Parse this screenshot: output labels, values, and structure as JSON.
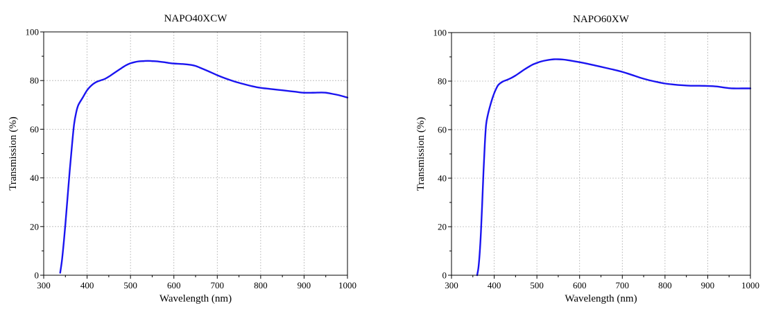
{
  "chart_data": [
    {
      "type": "line",
      "title": "NAPO40XCW",
      "xlabel": "Wavelength (nm)",
      "ylabel": "Transmission (%)",
      "xlim": [
        300,
        1000
      ],
      "ylim": [
        0,
        100
      ],
      "xticks": [
        300,
        400,
        500,
        600,
        700,
        800,
        900,
        1000
      ],
      "yticks": [
        0,
        20,
        40,
        60,
        80,
        100
      ],
      "grid": true,
      "line_color": "#1a14f0",
      "series": [
        {
          "name": "NAPO40XCW",
          "x": [
            338,
            342,
            346,
            350,
            355,
            360,
            365,
            370,
            375,
            380,
            390,
            400,
            410,
            420,
            430,
            440,
            450,
            460,
            470,
            480,
            490,
            500,
            510,
            520,
            530,
            540,
            550,
            560,
            570,
            580,
            590,
            600,
            620,
            640,
            650,
            660,
            680,
            700,
            720,
            740,
            760,
            780,
            800,
            820,
            840,
            860,
            880,
            900,
            920,
            940,
            950,
            960,
            980,
            1000
          ],
          "y": [
            1,
            6,
            13,
            21,
            32,
            43,
            53,
            62,
            67,
            70,
            73,
            76,
            78,
            79.3,
            80,
            80.6,
            81.6,
            82.8,
            84,
            85.2,
            86.3,
            87.1,
            87.6,
            87.9,
            88,
            88.1,
            88,
            87.9,
            87.7,
            87.5,
            87.2,
            87,
            86.8,
            86.4,
            86,
            85.3,
            83.8,
            82.2,
            80.8,
            79.6,
            78.6,
            77.7,
            77,
            76.6,
            76.2,
            75.8,
            75.4,
            75,
            75,
            75.1,
            75,
            74.7,
            74,
            73
          ]
        }
      ]
    },
    {
      "type": "line",
      "title": "NAPO60XW",
      "xlabel": "Wavelength (nm)",
      "ylabel": "Transmission (%)",
      "xlim": [
        300,
        1000
      ],
      "ylim": [
        0,
        100
      ],
      "xticks": [
        300,
        400,
        500,
        600,
        700,
        800,
        900,
        1000
      ],
      "yticks": [
        0,
        20,
        40,
        60,
        80,
        100
      ],
      "grid": true,
      "line_color": "#1a14f0",
      "series": [
        {
          "name": "NAPO60XW",
          "x": [
            360,
            363,
            366,
            369,
            372,
            375,
            378,
            381,
            385,
            390,
            395,
            400,
            405,
            410,
            420,
            430,
            440,
            450,
            460,
            470,
            480,
            490,
            500,
            510,
            520,
            530,
            540,
            550,
            560,
            570,
            580,
            600,
            620,
            640,
            660,
            680,
            700,
            720,
            740,
            760,
            780,
            800,
            820,
            840,
            860,
            880,
            900,
            920,
            940,
            950,
            960,
            980,
            1000
          ],
          "y": [
            0,
            3,
            9,
            18,
            30,
            43,
            54,
            62,
            66,
            69.5,
            72.5,
            75,
            77,
            78.5,
            79.8,
            80.5,
            81.3,
            82.3,
            83.5,
            84.7,
            85.8,
            86.8,
            87.5,
            88.1,
            88.5,
            88.8,
            89,
            89,
            88.9,
            88.7,
            88.4,
            87.8,
            87.1,
            86.3,
            85.5,
            84.7,
            83.8,
            82.7,
            81.5,
            80.5,
            79.7,
            79,
            78.6,
            78.3,
            78.1,
            78.1,
            78,
            77.8,
            77.3,
            77.1,
            77,
            77,
            77
          ]
        }
      ]
    }
  ]
}
